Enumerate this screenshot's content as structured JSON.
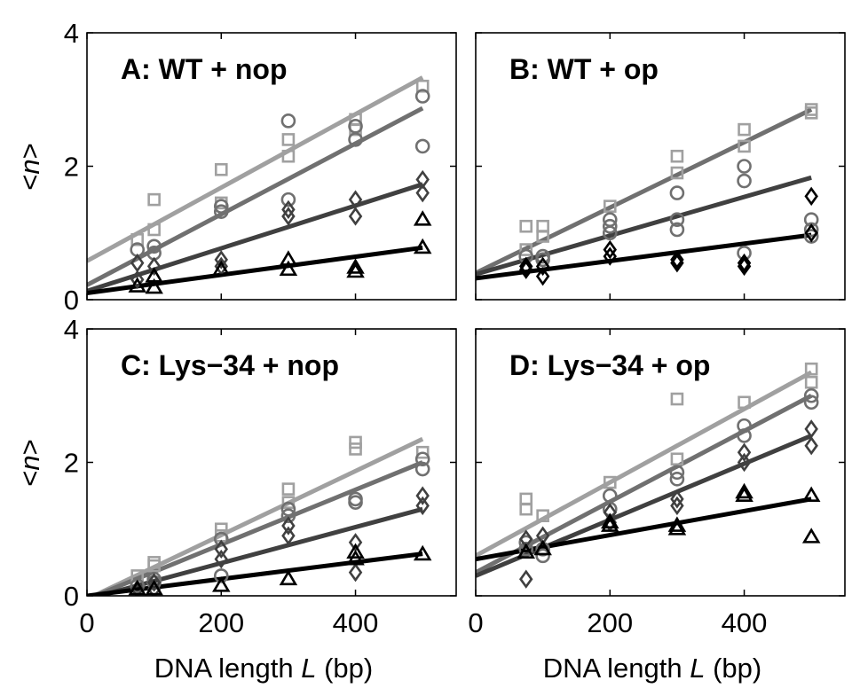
{
  "figure": {
    "ylabel_prefix": "<",
    "ylabel_var": "n",
    "ylabel_suffix": ">",
    "xlabel_prefix": "DNA length ",
    "xlabel_var": "L",
    "xlabel_suffix": " (bp)"
  },
  "chart_data": [
    {
      "type": "scatter",
      "title": "A: WT + nop",
      "xlim": [
        0,
        550
      ],
      "ylim": [
        0,
        4
      ],
      "xticks": [
        0,
        200,
        400
      ],
      "yticks": [
        0,
        2,
        4
      ],
      "series": [
        {
          "marker": "square",
          "color": "#a0a0a0",
          "points": [
            [
              75,
              0.9
            ],
            [
              100,
              1.5
            ],
            [
              100,
              1.05
            ],
            [
              200,
              1.95
            ],
            [
              200,
              1.45
            ],
            [
              300,
              2.4
            ],
            [
              300,
              2.15
            ],
            [
              400,
              2.7
            ],
            [
              400,
              2.55
            ],
            [
              500,
              3.2
            ]
          ],
          "fit": {
            "intercept": 0.58,
            "slope": 0.0055
          }
        },
        {
          "marker": "circle",
          "color": "#707070",
          "points": [
            [
              75,
              0.75
            ],
            [
              100,
              0.8
            ],
            [
              100,
              0.7
            ],
            [
              200,
              1.4
            ],
            [
              200,
              1.32
            ],
            [
              300,
              2.68
            ],
            [
              300,
              1.5
            ],
            [
              400,
              2.6
            ],
            [
              400,
              2.4
            ],
            [
              500,
              3.05
            ],
            [
              500,
              2.3
            ]
          ],
          "fit": {
            "intercept": 0.22,
            "slope": 0.0053
          }
        },
        {
          "marker": "diamond",
          "color": "#404040",
          "points": [
            [
              75,
              0.55
            ],
            [
              75,
              0.3
            ],
            [
              100,
              0.5
            ],
            [
              200,
              0.6
            ],
            [
              200,
              0.5
            ],
            [
              300,
              1.35
            ],
            [
              300,
              1.25
            ],
            [
              400,
              1.5
            ],
            [
              400,
              1.25
            ],
            [
              500,
              1.8
            ],
            [
              500,
              1.6
            ]
          ],
          "fit": {
            "intercept": 0.13,
            "slope": 0.0032
          }
        },
        {
          "marker": "triangle",
          "color": "#000000",
          "points": [
            [
              75,
              0.2
            ],
            [
              100,
              0.35
            ],
            [
              100,
              0.18
            ],
            [
              200,
              0.45
            ],
            [
              300,
              0.6
            ],
            [
              300,
              0.45
            ],
            [
              400,
              0.48
            ],
            [
              400,
              0.42
            ],
            [
              500,
              1.2
            ],
            [
              500,
              0.78
            ]
          ],
          "fit": {
            "intercept": 0.1,
            "slope": 0.00136
          }
        }
      ]
    },
    {
      "type": "scatter",
      "title": "B: WT + op",
      "xlim": [
        0,
        550
      ],
      "ylim": [
        0,
        4
      ],
      "xticks": [
        0,
        200,
        400
      ],
      "yticks": [
        0,
        2,
        4
      ],
      "series": [
        {
          "marker": "square",
          "color": "#a0a0a0",
          "points": [
            [
              75,
              1.1
            ],
            [
              75,
              0.75
            ],
            [
              100,
              1.1
            ],
            [
              100,
              0.95
            ],
            [
              200,
              1.4
            ],
            [
              300,
              2.15
            ],
            [
              300,
              1.9
            ],
            [
              400,
              2.55
            ],
            [
              400,
              2.3
            ],
            [
              500,
              2.85
            ],
            [
              500,
              2.8
            ]
          ],
          "fit": {
            "intercept": 0.4,
            "slope": 0.0049
          },
          "fit_color": "#707070"
        },
        {
          "marker": "circle",
          "color": "#707070",
          "points": [
            [
              75,
              0.65
            ],
            [
              100,
              0.65
            ],
            [
              100,
              0.6
            ],
            [
              200,
              1.2
            ],
            [
              200,
              1.1
            ],
            [
              200,
              1.0
            ],
            [
              300,
              1.6
            ],
            [
              300,
              1.2
            ],
            [
              300,
              1.05
            ],
            [
              400,
              2.0
            ],
            [
              400,
              1.78
            ],
            [
              400,
              0.7
            ],
            [
              500,
              1.2
            ],
            [
              500,
              1.05
            ],
            [
              500,
              0.95
            ]
          ],
          "fit": {
            "intercept": 0.38,
            "slope": 0.0029
          },
          "fit_color": "#404040"
        },
        {
          "marker": "diamond",
          "color": "#000000",
          "points": [
            [
              75,
              0.5
            ],
            [
              75,
              0.45
            ],
            [
              100,
              0.5
            ],
            [
              100,
              0.35
            ],
            [
              200,
              0.75
            ],
            [
              200,
              0.65
            ],
            [
              300,
              0.6
            ],
            [
              300,
              0.55
            ],
            [
              400,
              0.55
            ],
            [
              400,
              0.5
            ],
            [
              500,
              1.55
            ],
            [
              500,
              1.0
            ]
          ],
          "fit": {
            "intercept": 0.32,
            "slope": 0.0013
          }
        }
      ]
    },
    {
      "type": "scatter",
      "title": "C: Lys−34 + nop",
      "xlim": [
        0,
        550
      ],
      "ylim": [
        0,
        4
      ],
      "xticks": [
        0,
        200,
        400
      ],
      "yticks": [
        0,
        2,
        4
      ],
      "series": [
        {
          "marker": "square",
          "color": "#a0a0a0",
          "points": [
            [
              75,
              0.3
            ],
            [
              100,
              0.5
            ],
            [
              100,
              0.45
            ],
            [
              200,
              1.0
            ],
            [
              200,
              0.9
            ],
            [
              300,
              1.6
            ],
            [
              300,
              1.4
            ],
            [
              400,
              2.3
            ],
            [
              400,
              2.2
            ],
            [
              500,
              2.15
            ]
          ],
          "fit": {
            "intercept": -0.05,
            "slope": 0.0048
          }
        },
        {
          "marker": "circle",
          "color": "#707070",
          "points": [
            [
              75,
              0.15
            ],
            [
              100,
              0.25
            ],
            [
              100,
              0.2
            ],
            [
              200,
              0.85
            ],
            [
              200,
              0.3
            ],
            [
              300,
              1.3
            ],
            [
              300,
              1.2
            ],
            [
              400,
              1.45
            ],
            [
              400,
              1.4
            ],
            [
              500,
              2.05
            ],
            [
              500,
              1.9
            ]
          ],
          "fit": {
            "intercept": -0.05,
            "slope": 0.0041
          }
        },
        {
          "marker": "diamond",
          "color": "#404040",
          "points": [
            [
              75,
              0.1
            ],
            [
              100,
              0.2
            ],
            [
              100,
              0.1
            ],
            [
              200,
              0.7
            ],
            [
              200,
              0.55
            ],
            [
              300,
              1.05
            ],
            [
              300,
              0.9
            ],
            [
              400,
              0.8
            ],
            [
              400,
              0.35
            ],
            [
              500,
              1.5
            ],
            [
              500,
              1.35
            ]
          ],
          "fit": {
            "intercept": -0.05,
            "slope": 0.0027
          }
        },
        {
          "marker": "triangle",
          "color": "#000000",
          "points": [
            [
              75,
              0.1
            ],
            [
              100,
              0.1
            ],
            [
              200,
              0.15
            ],
            [
              300,
              0.25
            ],
            [
              400,
              0.65
            ],
            [
              400,
              0.55
            ],
            [
              500,
              0.62
            ]
          ],
          "fit": {
            "intercept": 0,
            "slope": 0.00126
          }
        }
      ]
    },
    {
      "type": "scatter",
      "title": "D: Lys−34 + op",
      "xlim": [
        0,
        550
      ],
      "ylim": [
        0,
        4
      ],
      "xticks": [
        0,
        200,
        400
      ],
      "yticks": [
        0,
        2,
        4
      ],
      "series": [
        {
          "marker": "square",
          "color": "#a0a0a0",
          "points": [
            [
              75,
              1.45
            ],
            [
              75,
              1.3
            ],
            [
              100,
              1.2
            ],
            [
              200,
              1.7
            ],
            [
              300,
              2.95
            ],
            [
              300,
              2.05
            ],
            [
              400,
              2.9
            ],
            [
              500,
              3.4
            ],
            [
              500,
              3.2
            ]
          ],
          "fit": {
            "intercept": 0.6,
            "slope": 0.0055
          }
        },
        {
          "marker": "circle",
          "color": "#707070",
          "points": [
            [
              75,
              0.8
            ],
            [
              75,
              0.7
            ],
            [
              100,
              0.7
            ],
            [
              100,
              0.6
            ],
            [
              200,
              1.5
            ],
            [
              200,
              1.3
            ],
            [
              300,
              1.85
            ],
            [
              300,
              1.75
            ],
            [
              400,
              2.55
            ],
            [
              400,
              2.4
            ],
            [
              500,
              3.0
            ],
            [
              500,
              2.9
            ]
          ],
          "fit": {
            "intercept": 0.35,
            "slope": 0.0053
          }
        },
        {
          "marker": "diamond",
          "color": "#404040",
          "points": [
            [
              75,
              0.85
            ],
            [
              75,
              0.25
            ],
            [
              100,
              0.9
            ],
            [
              200,
              1.25
            ],
            [
              200,
              1.1
            ],
            [
              300,
              1.45
            ],
            [
              300,
              1.35
            ],
            [
              400,
              2.15
            ],
            [
              400,
              2.0
            ],
            [
              500,
              2.5
            ],
            [
              500,
              2.25
            ]
          ],
          "fit": {
            "intercept": 0.3,
            "slope": 0.0042
          }
        },
        {
          "marker": "triangle",
          "color": "#000000",
          "points": [
            [
              75,
              0.65
            ],
            [
              100,
              0.7
            ],
            [
              200,
              1.1
            ],
            [
              200,
              1.05
            ],
            [
              300,
              1.05
            ],
            [
              300,
              1.0
            ],
            [
              400,
              1.55
            ],
            [
              400,
              1.5
            ],
            [
              500,
              1.5
            ],
            [
              500,
              0.88
            ]
          ],
          "fit": {
            "intercept": 0.55,
            "slope": 0.0018
          }
        }
      ]
    }
  ]
}
